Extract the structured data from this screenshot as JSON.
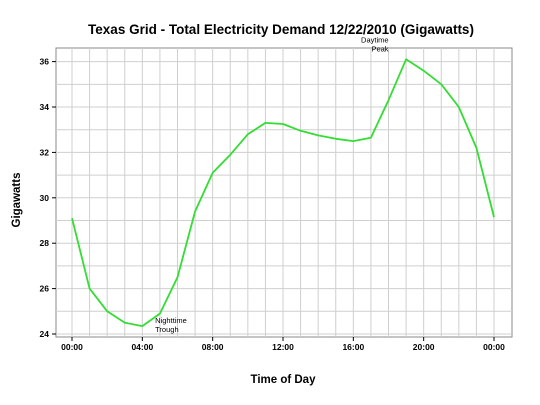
{
  "chart_data": {
    "type": "line",
    "title": "Texas Grid - Total Electricity Demand 12/22/2010 (Gigawatts)",
    "xlabel": "Time of Day",
    "ylabel": "Gigawatts",
    "x_unit": "hours",
    "xlim": [
      0,
      24
    ],
    "ylim": [
      24,
      36.6
    ],
    "x_ticks": [
      {
        "value": 0,
        "label": "00:00"
      },
      {
        "value": 4,
        "label": "04:00"
      },
      {
        "value": 8,
        "label": "08:00"
      },
      {
        "value": 12,
        "label": "12:00"
      },
      {
        "value": 16,
        "label": "16:00"
      },
      {
        "value": 20,
        "label": "20:00"
      },
      {
        "value": 24,
        "label": "00:00"
      }
    ],
    "y_ticks": [
      {
        "value": 24,
        "label": "24"
      },
      {
        "value": 26,
        "label": "26"
      },
      {
        "value": 28,
        "label": "28"
      },
      {
        "value": 30,
        "label": "30"
      },
      {
        "value": 32,
        "label": "32"
      },
      {
        "value": 34,
        "label": "34"
      },
      {
        "value": 36,
        "label": "36"
      }
    ],
    "grid": true,
    "series_color": "#33dd33",
    "series": [
      {
        "x": [
          0,
          1,
          2,
          3,
          4,
          5,
          6,
          7,
          8,
          9,
          10,
          11,
          12,
          13,
          14,
          15,
          16,
          17,
          18,
          19,
          20,
          21,
          22,
          23,
          24
        ],
        "values": [
          29.1,
          26.0,
          25.0,
          24.5,
          24.35,
          24.9,
          26.5,
          29.4,
          31.1,
          31.9,
          32.8,
          33.3,
          33.25,
          32.95,
          32.75,
          32.6,
          32.5,
          32.65,
          34.3,
          36.1,
          35.6,
          35.0,
          34.0,
          32.2,
          29.15
        ]
      }
    ],
    "annotations": [
      {
        "lines": [
          "Nighttime",
          "Trough"
        ],
        "x": 4.5,
        "y": 24.35
      },
      {
        "lines": [
          "Daytime",
          "Peak"
        ],
        "x": 18.8,
        "y": 36.1
      }
    ]
  }
}
